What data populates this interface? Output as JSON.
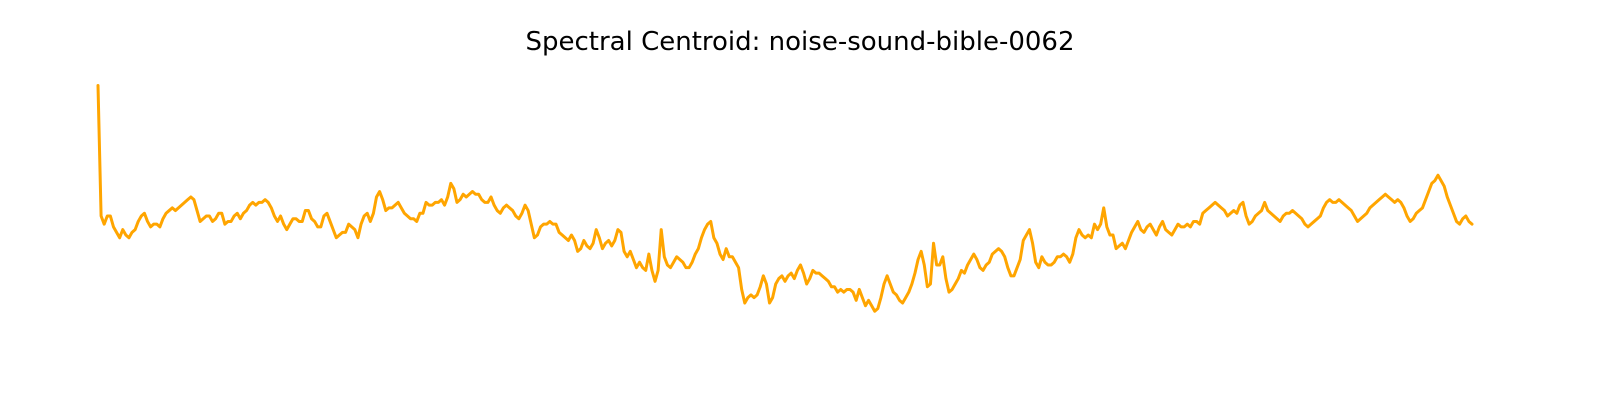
{
  "chart_data": {
    "type": "line",
    "title": "Spectral Centroid: noise-sound-bible-0062",
    "xlabel": "",
    "ylabel": "",
    "grid": false,
    "axes_visible": false,
    "legend": false,
    "line_color": "#FFA500",
    "ylim": [
      0,
      1
    ],
    "series": [
      {
        "values": [
          0.98,
          0.5,
          0.47,
          0.5,
          0.5,
          0.46,
          0.44,
          0.42,
          0.45,
          0.43,
          0.42,
          0.44,
          0.45,
          0.48,
          0.5,
          0.51,
          0.48,
          0.46,
          0.47,
          0.47,
          0.46,
          0.49,
          0.51,
          0.52,
          0.53,
          0.52,
          0.53,
          0.54,
          0.55,
          0.56,
          0.57,
          0.56,
          0.52,
          0.48,
          0.49,
          0.5,
          0.5,
          0.48,
          0.49,
          0.51,
          0.51,
          0.47,
          0.48,
          0.48,
          0.5,
          0.51,
          0.49,
          0.51,
          0.52,
          0.54,
          0.55,
          0.54,
          0.55,
          0.55,
          0.56,
          0.55,
          0.53,
          0.5,
          0.48,
          0.5,
          0.47,
          0.45,
          0.47,
          0.49,
          0.49,
          0.48,
          0.48,
          0.52,
          0.52,
          0.49,
          0.48,
          0.46,
          0.46,
          0.5,
          0.51,
          0.48,
          0.45,
          0.42,
          0.43,
          0.44,
          0.44,
          0.47,
          0.46,
          0.45,
          0.42,
          0.47,
          0.5,
          0.51,
          0.48,
          0.51,
          0.57,
          0.59,
          0.56,
          0.52,
          0.53,
          0.53,
          0.54,
          0.55,
          0.53,
          0.51,
          0.5,
          0.49,
          0.49,
          0.48,
          0.51,
          0.51,
          0.55,
          0.54,
          0.54,
          0.55,
          0.55,
          0.56,
          0.54,
          0.57,
          0.62,
          0.6,
          0.55,
          0.56,
          0.58,
          0.57,
          0.58,
          0.59,
          0.58,
          0.58,
          0.56,
          0.55,
          0.55,
          0.57,
          0.54,
          0.52,
          0.51,
          0.53,
          0.54,
          0.53,
          0.52,
          0.5,
          0.49,
          0.51,
          0.54,
          0.52,
          0.47,
          0.42,
          0.43,
          0.46,
          0.47,
          0.47,
          0.48,
          0.47,
          0.47,
          0.44,
          0.43,
          0.42,
          0.41,
          0.43,
          0.41,
          0.37,
          0.38,
          0.41,
          0.39,
          0.38,
          0.4,
          0.45,
          0.42,
          0.38,
          0.4,
          0.41,
          0.39,
          0.41,
          0.45,
          0.44,
          0.37,
          0.35,
          0.37,
          0.34,
          0.31,
          0.33,
          0.31,
          0.3,
          0.36,
          0.3,
          0.26,
          0.3,
          0.45,
          0.35,
          0.32,
          0.31,
          0.33,
          0.35,
          0.34,
          0.33,
          0.31,
          0.31,
          0.33,
          0.36,
          0.38,
          0.42,
          0.45,
          0.47,
          0.48,
          0.42,
          0.4,
          0.36,
          0.34,
          0.38,
          0.35,
          0.35,
          0.33,
          0.31,
          0.23,
          0.18,
          0.2,
          0.21,
          0.2,
          0.21,
          0.24,
          0.28,
          0.25,
          0.18,
          0.2,
          0.25,
          0.27,
          0.28,
          0.26,
          0.28,
          0.29,
          0.27,
          0.3,
          0.32,
          0.29,
          0.25,
          0.27,
          0.3,
          0.29,
          0.29,
          0.28,
          0.27,
          0.26,
          0.24,
          0.24,
          0.22,
          0.23,
          0.22,
          0.23,
          0.23,
          0.22,
          0.19,
          0.23,
          0.2,
          0.17,
          0.19,
          0.17,
          0.15,
          0.16,
          0.2,
          0.25,
          0.28,
          0.25,
          0.22,
          0.21,
          0.19,
          0.18,
          0.2,
          0.22,
          0.25,
          0.29,
          0.34,
          0.37,
          0.32,
          0.24,
          0.25,
          0.4,
          0.32,
          0.32,
          0.35,
          0.27,
          0.22,
          0.23,
          0.25,
          0.27,
          0.3,
          0.29,
          0.32,
          0.34,
          0.36,
          0.34,
          0.31,
          0.3,
          0.32,
          0.33,
          0.36,
          0.37,
          0.38,
          0.37,
          0.35,
          0.31,
          0.28,
          0.28,
          0.31,
          0.34,
          0.41,
          0.43,
          0.45,
          0.4,
          0.33,
          0.31,
          0.35,
          0.33,
          0.32,
          0.32,
          0.33,
          0.35,
          0.35,
          0.36,
          0.35,
          0.33,
          0.36,
          0.42,
          0.45,
          0.43,
          0.42,
          0.43,
          0.42,
          0.47,
          0.45,
          0.47,
          0.53,
          0.46,
          0.43,
          0.43,
          0.38,
          0.39,
          0.4,
          0.38,
          0.41,
          0.44,
          0.46,
          0.48,
          0.45,
          0.44,
          0.46,
          0.47,
          0.45,
          0.43,
          0.46,
          0.48,
          0.45,
          0.44,
          0.43,
          0.45,
          0.47,
          0.46,
          0.46,
          0.47,
          0.46,
          0.48,
          0.48,
          0.47,
          0.51,
          0.52,
          0.53,
          0.54,
          0.55,
          0.54,
          0.53,
          0.52,
          0.5,
          0.51,
          0.52,
          0.51,
          0.54,
          0.55,
          0.5,
          0.47,
          0.48,
          0.5,
          0.51,
          0.52,
          0.55,
          0.52,
          0.51,
          0.5,
          0.49,
          0.48,
          0.5,
          0.51,
          0.51,
          0.52,
          0.51,
          0.5,
          0.49,
          0.47,
          0.46,
          0.47,
          0.48,
          0.49,
          0.5,
          0.53,
          0.55,
          0.56,
          0.55,
          0.55,
          0.56,
          0.55,
          0.54,
          0.53,
          0.52,
          0.5,
          0.48,
          0.49,
          0.5,
          0.51,
          0.53,
          0.54,
          0.55,
          0.56,
          0.57,
          0.58,
          0.57,
          0.56,
          0.55,
          0.56,
          0.55,
          0.53,
          0.5,
          0.48,
          0.49,
          0.51,
          0.52,
          0.53,
          0.56,
          0.59,
          0.62,
          0.63,
          0.65,
          0.63,
          0.61,
          0.57,
          0.54,
          0.51,
          0.48,
          0.47,
          0.49,
          0.5,
          0.48,
          0.47
        ]
      }
    ]
  }
}
